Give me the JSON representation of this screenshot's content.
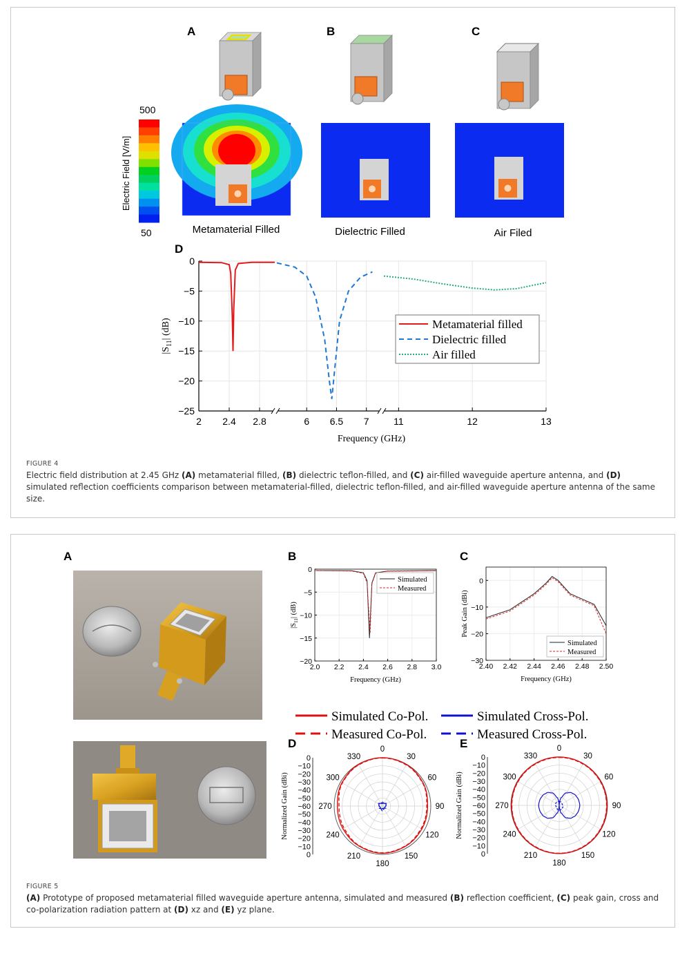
{
  "figure4": {
    "panel_letters": [
      "A",
      "B",
      "C",
      "D"
    ],
    "field_scale": {
      "label": "Electric Field [V/m]",
      "max": "500",
      "min": "50",
      "colors": [
        "#ff0000",
        "#ff4000",
        "#ff8000",
        "#ffc000",
        "#e0e000",
        "#80e000",
        "#00d020",
        "#00d060",
        "#00e0a0",
        "#00c8e0",
        "#0090f0",
        "#0050f0",
        "#0020f0"
      ]
    },
    "field_panels": [
      {
        "label": "Metamaterial Filled"
      },
      {
        "label": "Dielectric Filled"
      },
      {
        "label": "Air Filed"
      }
    ],
    "caption_label": "FIGURE 4",
    "caption_parts": [
      {
        "t": "Electric field distribution at 2.45 GHz "
      },
      {
        "t": "(A)",
        "b": true
      },
      {
        "t": " metamaterial filled, "
      },
      {
        "t": "(B)",
        "b": true
      },
      {
        "t": " dielectric teflon-filled, and "
      },
      {
        "t": "(C)",
        "b": true
      },
      {
        "t": " air-filled waveguide aperture antenna, and "
      },
      {
        "t": "(D)",
        "b": true
      },
      {
        "t": " simulated reflection coefficients comparison between metamaterial-filled, dielectric teflon-filled, and air-filled waveguide aperture antenna of the same size."
      }
    ]
  },
  "figure5": {
    "panel_letters": [
      "A",
      "B",
      "C",
      "D",
      "E"
    ],
    "caption_label": "FIGURE 5",
    "caption_parts": [
      {
        "t": "(A)",
        "b": true
      },
      {
        "t": " Prototype of proposed metamaterial filled waveguide aperture antenna, simulated and measured "
      },
      {
        "t": "(B)",
        "b": true
      },
      {
        "t": " reflection coefficient, "
      },
      {
        "t": "(C)",
        "b": true
      },
      {
        "t": " peak gain, cross and co-polarization radiation pattern at "
      },
      {
        "t": "(D)",
        "b": true
      },
      {
        "t": " xz and "
      },
      {
        "t": "(E)",
        "b": true
      },
      {
        "t": " yz plane."
      }
    ],
    "legend_top": [
      {
        "name": "Simulated Co-Pol.",
        "color": "#dd1111",
        "dash": false
      },
      {
        "name": "Simulated Cross-Pol.",
        "color": "#1111cc",
        "dash": false
      },
      {
        "name": "Measured Co-Pol.",
        "color": "#dd1111",
        "dash": true
      },
      {
        "name": "Measured Cross-Pol.",
        "color": "#1111cc",
        "dash": true
      }
    ]
  },
  "chart_data": [
    {
      "id": "fig4D",
      "type": "line",
      "xlabel": "Frequency (GHz)",
      "ylabel": "|S11| (dB)",
      "ylim": [
        -25,
        0
      ],
      "yticks": [
        0,
        -5,
        -10,
        -15,
        -20,
        -25
      ],
      "segments": [
        {
          "xmin": 2,
          "xmax": 3,
          "ticks": [
            2,
            2.4,
            2.8
          ],
          "tick_labels": [
            "2",
            "2.4",
            "2.8"
          ]
        },
        {
          "xmin": 5.5,
          "xmax": 7.2,
          "ticks": [
            6,
            6.5,
            7
          ],
          "tick_labels": [
            "6",
            "6.5",
            "7"
          ]
        },
        {
          "xmin": 10.8,
          "xmax": 13,
          "ticks": [
            11,
            12,
            13
          ],
          "tick_labels": [
            "11",
            "12",
            "13"
          ]
        }
      ],
      "series": [
        {
          "name": "Metamaterial filled",
          "color": "#e31a1c",
          "dash": "",
          "segment": 0,
          "points": [
            [
              2,
              -0.2
            ],
            [
              2.3,
              -0.25
            ],
            [
              2.4,
              -0.6
            ],
            [
              2.42,
              -2
            ],
            [
              2.44,
              -9
            ],
            [
              2.45,
              -15
            ],
            [
              2.46,
              -8
            ],
            [
              2.48,
              -1.5
            ],
            [
              2.52,
              -0.4
            ],
            [
              2.7,
              -0.2
            ],
            [
              3.0,
              -0.2
            ]
          ]
        },
        {
          "name": "Dielectric filled",
          "color": "#1f77d4",
          "dash": "7,5",
          "segment": 1,
          "points": [
            [
              5.5,
              -0.3
            ],
            [
              5.8,
              -1.0
            ],
            [
              6.0,
              -2.5
            ],
            [
              6.15,
              -6
            ],
            [
              6.3,
              -13
            ],
            [
              6.38,
              -20
            ],
            [
              6.42,
              -23
            ],
            [
              6.46,
              -19
            ],
            [
              6.55,
              -10
            ],
            [
              6.7,
              -5
            ],
            [
              6.9,
              -2.7
            ],
            [
              7.1,
              -1.8
            ]
          ]
        },
        {
          "name": "Air filled",
          "color": "#2ca87a",
          "dash": "2,2",
          "segment": 2,
          "points": [
            [
              10.8,
              -2.5
            ],
            [
              11.2,
              -3.0
            ],
            [
              11.6,
              -3.8
            ],
            [
              12.0,
              -4.5
            ],
            [
              12.3,
              -4.8
            ],
            [
              12.6,
              -4.6
            ],
            [
              13.0,
              -3.6
            ]
          ]
        }
      ]
    },
    {
      "id": "fig5B",
      "type": "line",
      "xlabel": "Frequency (GHz)",
      "ylabel": "|S11| (dB)",
      "xlim": [
        2.0,
        3.0
      ],
      "ylim": [
        -20,
        0
      ],
      "xticks": [
        2.0,
        2.2,
        2.4,
        2.6,
        2.8,
        3.0
      ],
      "xtick_labels": [
        "2.0",
        "2.2",
        "2.4",
        "2.6",
        "2.8",
        "3.0"
      ],
      "yticks": [
        0,
        -5,
        -10,
        -15,
        -20
      ],
      "ytick_labels": [
        "0",
        "-5",
        "-10",
        "-15",
        "-20"
      ],
      "series": [
        {
          "name": "Simulated",
          "color": "#222222",
          "dash": "",
          "points": [
            [
              2.0,
              -0.3
            ],
            [
              2.3,
              -0.35
            ],
            [
              2.4,
              -0.8
            ],
            [
              2.43,
              -2.5
            ],
            [
              2.45,
              -15
            ],
            [
              2.47,
              -3
            ],
            [
              2.5,
              -0.8
            ],
            [
              2.6,
              -0.4
            ],
            [
              3.0,
              -0.3
            ]
          ]
        },
        {
          "name": "Measured",
          "color": "#dd2222",
          "dash": "3,2",
          "points": [
            [
              2.0,
              -0.3
            ],
            [
              2.3,
              -0.4
            ],
            [
              2.4,
              -0.9
            ],
            [
              2.43,
              -3
            ],
            [
              2.455,
              -14
            ],
            [
              2.47,
              -3.2
            ],
            [
              2.5,
              -0.9
            ],
            [
              2.6,
              -0.45
            ],
            [
              3.0,
              -0.35
            ]
          ]
        }
      ]
    },
    {
      "id": "fig5C",
      "type": "line",
      "xlabel": "Frequency (GHz)",
      "ylabel": "Peak Gain (dBi)",
      "xlim": [
        2.4,
        2.5
      ],
      "ylim": [
        -30,
        5
      ],
      "xticks": [
        2.4,
        2.42,
        2.44,
        2.46,
        2.48,
        2.5
      ],
      "xtick_labels": [
        "2.40",
        "2.42",
        "2.44",
        "2.46",
        "2.48",
        "2.50"
      ],
      "yticks": [
        0,
        -10,
        -20,
        -30
      ],
      "ytick_labels": [
        "0",
        "-10",
        "-20",
        "-30"
      ],
      "series": [
        {
          "name": "Simulated",
          "color": "#222222",
          "dash": "",
          "points": [
            [
              2.4,
              -14
            ],
            [
              2.42,
              -11
            ],
            [
              2.44,
              -5
            ],
            [
              2.45,
              -1
            ],
            [
              2.455,
              1.5
            ],
            [
              2.46,
              0
            ],
            [
              2.47,
              -5
            ],
            [
              2.48,
              -7
            ],
            [
              2.49,
              -9
            ],
            [
              2.5,
              -17
            ]
          ]
        },
        {
          "name": "Measured",
          "color": "#dd2222",
          "dash": "3,2",
          "points": [
            [
              2.4,
              -14.5
            ],
            [
              2.42,
              -11.5
            ],
            [
              2.44,
              -5.5
            ],
            [
              2.45,
              -1.5
            ],
            [
              2.455,
              1.0
            ],
            [
              2.46,
              -0.5
            ],
            [
              2.47,
              -5.5
            ],
            [
              2.48,
              -7.5
            ],
            [
              2.49,
              -9.5
            ],
            [
              2.5,
              -20
            ]
          ]
        }
      ]
    },
    {
      "id": "fig5D",
      "type": "polar",
      "ylabel": "Normalized Gain (dBi)",
      "angle_labels": [
        "0",
        "30",
        "60",
        "90",
        "120",
        "150",
        "180",
        "210",
        "240",
        "270",
        "300",
        "330"
      ],
      "radial_ticks": [
        "0",
        "-10",
        "-20",
        "-30",
        "-40",
        "-50",
        "-60",
        "-50",
        "-40",
        "-30",
        "-20",
        "-10",
        "0"
      ],
      "rlim": [
        -60,
        0
      ],
      "series": [
        {
          "name": "Simulated Co-Pol.",
          "color": "#dd1111",
          "dash": "",
          "angles": [
            0,
            30,
            60,
            90,
            120,
            150,
            180,
            210,
            240,
            270,
            300,
            330
          ],
          "gains": [
            0,
            -0.5,
            -2,
            -4,
            -3.5,
            -2.5,
            -1.5,
            -2.5,
            -3.5,
            -4,
            -2,
            -0.5
          ]
        },
        {
          "name": "Measured Co-Pol.",
          "color": "#dd1111",
          "dash": "5,3",
          "angles": [
            0,
            30,
            60,
            90,
            120,
            150,
            180,
            210,
            240,
            270,
            300,
            330
          ],
          "gains": [
            -0.3,
            -1,
            -2.5,
            -5,
            -4.5,
            -3,
            -2,
            -3,
            -5,
            -6,
            -2.5,
            -1
          ]
        },
        {
          "name": "Simulated Cross-Pol.",
          "color": "#1111cc",
          "dash": "",
          "angles": [
            0,
            30,
            60,
            90,
            120,
            150,
            180,
            210,
            240,
            270,
            300,
            330
          ],
          "gains": [
            -57,
            -56,
            -55,
            -56,
            -57,
            -56,
            -57,
            -56,
            -57,
            -56,
            -55,
            -56
          ]
        },
        {
          "name": "Measured Cross-Pol.",
          "color": "#1111cc",
          "dash": "3,2",
          "angles": [
            0,
            30,
            60,
            90,
            120,
            150,
            180,
            210,
            240,
            270,
            300,
            330
          ],
          "gains": [
            -55,
            -57,
            -54,
            -56,
            -55,
            -58,
            -54,
            -57,
            -55,
            -56,
            -54,
            -57
          ]
        }
      ]
    },
    {
      "id": "fig5E",
      "type": "polar",
      "ylabel": "Normalized Gain (dBi)",
      "angle_labels": [
        "0",
        "30",
        "60",
        "90",
        "120",
        "150",
        "180",
        "210",
        "240",
        "270",
        "300",
        "330"
      ],
      "radial_ticks": [
        "0",
        "-10",
        "-20",
        "-30",
        "-40",
        "-50",
        "-60",
        "-50",
        "-40",
        "-30",
        "-20",
        "-10",
        "0"
      ],
      "rlim": [
        -60,
        0
      ],
      "series": [
        {
          "name": "Simulated Co-Pol.",
          "color": "#dd1111",
          "dash": "",
          "angles": [
            0,
            30,
            60,
            90,
            120,
            150,
            180,
            210,
            240,
            270,
            300,
            330
          ],
          "gains": [
            0,
            -0.3,
            -0.6,
            -0.8,
            -0.6,
            -0.4,
            -0.3,
            -0.4,
            -0.6,
            -0.8,
            -0.6,
            -0.3
          ]
        },
        {
          "name": "Measured Co-Pol.",
          "color": "#dd1111",
          "dash": "5,3",
          "angles": [
            0,
            30,
            60,
            90,
            120,
            150,
            180,
            210,
            240,
            270,
            300,
            330
          ],
          "gains": [
            -0.5,
            -0.8,
            -1.0,
            -1.2,
            -1.0,
            -0.8,
            -0.6,
            -0.8,
            -1.0,
            -1.2,
            -1.0,
            -0.8
          ]
        },
        {
          "name": "Simulated Cross-Pol.",
          "color": "#1111cc",
          "dash": "",
          "angles": [
            0,
            15,
            30,
            45,
            60,
            75,
            90,
            105,
            120,
            135,
            150,
            165,
            180,
            195,
            210,
            225,
            240,
            255,
            270,
            285,
            300,
            315,
            330,
            345
          ],
          "gains": [
            -60,
            -50,
            -42,
            -38,
            -36,
            -35,
            -34.5,
            -35,
            -36,
            -38,
            -42,
            -50,
            -60,
            -50,
            -42,
            -38,
            -36,
            -35,
            -34.5,
            -35,
            -36,
            -38,
            -42,
            -50
          ]
        },
        {
          "name": "Measured Cross-Pol.",
          "color": "#1111cc",
          "dash": "3,2",
          "angles": [
            0,
            60,
            120,
            180,
            240,
            300
          ],
          "gains": [
            -55,
            -56,
            -55,
            -54,
            -56,
            -55
          ]
        }
      ]
    }
  ]
}
